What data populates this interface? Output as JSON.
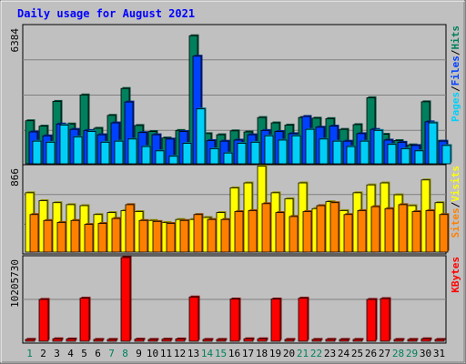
{
  "chart_data": {
    "type": "bar",
    "title": "Daily usage for August 2021",
    "categories": [
      "1",
      "2",
      "3",
      "4",
      "5",
      "6",
      "7",
      "8",
      "9",
      "10",
      "11",
      "12",
      "13",
      "14",
      "15",
      "16",
      "17",
      "18",
      "19",
      "20",
      "21",
      "22",
      "23",
      "24",
      "25",
      "26",
      "27",
      "28",
      "29",
      "30",
      "31"
    ],
    "weekend_days": [
      "1",
      "7",
      "8",
      "14",
      "15",
      "21",
      "22",
      "28",
      "29"
    ],
    "panels": [
      {
        "id": "pages-files-hits",
        "ymax_label": "6384",
        "ylim": [
          0,
          6384
        ],
        "legend": [
          {
            "label": "Pages",
            "color": "#00d0f8"
          },
          {
            "label": "/",
            "color": "#000000"
          },
          {
            "label": "Files",
            "color": "#0040ff"
          },
          {
            "label": "/",
            "color": "#000000"
          },
          {
            "label": "Hits",
            "color": "#00805c"
          }
        ],
        "series": [
          {
            "name": "Hits",
            "color": "#00805c",
            "values": [
              2000,
              1750,
              2900,
              1850,
              3200,
              1650,
              2250,
              3500,
              1780,
              1500,
              1200,
              1550,
              5950,
              1400,
              1350,
              1530,
              1480,
              2150,
              1900,
              1800,
              2150,
              2120,
              2100,
              1600,
              1820,
              3070,
              1370,
              1080,
              880,
              2880,
              1050
            ]
          },
          {
            "name": "Files",
            "color": "#0040ff",
            "values": [
              1480,
              1300,
              1850,
              1600,
              1550,
              1350,
              1900,
              2870,
              1450,
              1350,
              1150,
              1500,
              5000,
              1080,
              1050,
              1100,
              1350,
              1550,
              1500,
              1400,
              2200,
              1700,
              1750,
              1050,
              1400,
              1600,
              1100,
              1000,
              850,
              1950,
              1050
            ]
          },
          {
            "name": "Pages",
            "color": "#00d0f8",
            "values": [
              1050,
              1000,
              1800,
              1250,
              1500,
              1000,
              1050,
              1150,
              800,
              600,
              350,
              950,
              2550,
              700,
              500,
              950,
              1000,
              1300,
              1100,
              1300,
              1600,
              1150,
              1050,
              800,
              1050,
              1550,
              900,
              700,
              600,
              1900,
              850
            ]
          }
        ]
      },
      {
        "id": "sites-visits",
        "ymax_label": "866",
        "ylim": [
          0,
          866
        ],
        "legend": [
          {
            "label": "Sites",
            "color": "#ff8000"
          },
          {
            "label": "/",
            "color": "#000000"
          },
          {
            "label": "Visits",
            "color": "#ffff00"
          }
        ],
        "series": [
          {
            "name": "Visits",
            "color": "#ffff00",
            "values": [
              600,
              520,
              500,
              480,
              470,
              380,
              400,
              420,
              410,
              320,
              300,
              330,
              330,
              350,
              400,
              650,
              700,
              870,
              600,
              540,
              700,
              440,
              510,
              420,
              600,
              680,
              700,
              580,
              470,
              730,
              500
            ]
          },
          {
            "name": "Sites",
            "color": "#ff8000",
            "values": [
              380,
              320,
              300,
              320,
              280,
              290,
              340,
              480,
              320,
              310,
              290,
              320,
              380,
              330,
              330,
              410,
              420,
              490,
              400,
              360,
              410,
              470,
              500,
              380,
              420,
              460,
              440,
              480,
              410,
              420,
              380
            ]
          }
        ]
      },
      {
        "id": "kbytes",
        "ymax_label": "10205730",
        "ylim": [
          0,
          10205730
        ],
        "legend": [
          {
            "label": "KBytes",
            "color": "#ff0000"
          }
        ],
        "series": [
          {
            "name": "KBytes",
            "color": "#ff0000",
            "values": [
              230000,
              5100000,
              300000,
              280000,
              5250000,
              220000,
              220000,
              10205730,
              250000,
              210000,
              250000,
              280000,
              5400000,
              160000,
              160000,
              5150000,
              300000,
              300000,
              5150000,
              170000,
              5250000,
              170000,
              230000,
              170000,
              170000,
              5100000,
              5200000,
              120000,
              170000,
              300000,
              160000
            ]
          }
        ]
      }
    ]
  }
}
